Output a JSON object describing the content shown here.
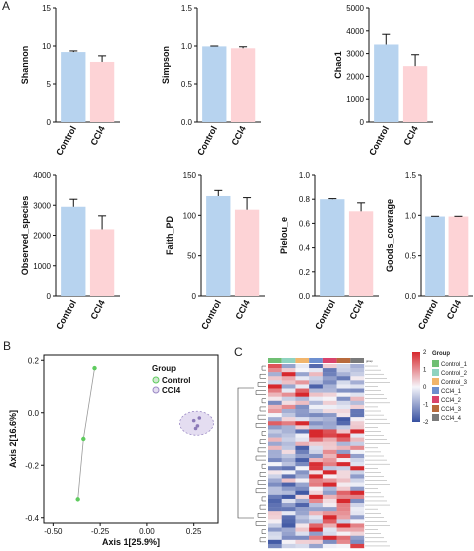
{
  "panel_labels": [
    "A",
    "B",
    "C"
  ],
  "chart_data": [
    {
      "type": "bar",
      "ylabel": "Shannon",
      "categories": [
        "Control",
        "CCl4"
      ],
      "values": [
        9.2,
        7.9
      ],
      "errors": [
        0.15,
        0.8
      ],
      "ylim": [
        0,
        15
      ],
      "yticks": [
        0,
        5,
        10,
        15
      ],
      "colors": [
        "#b7d3ef",
        "#fdd3d6"
      ]
    },
    {
      "type": "bar",
      "ylabel": "Simpson",
      "categories": [
        "Control",
        "CCl4"
      ],
      "values": [
        0.995,
        0.97
      ],
      "errors": [
        0.005,
        0.02
      ],
      "ylim": [
        0,
        1.5
      ],
      "yticks": [
        0.0,
        0.5,
        1.0,
        1.5
      ],
      "colors": [
        "#b7d3ef",
        "#fdd3d6"
      ]
    },
    {
      "type": "bar",
      "ylabel": "Chao1",
      "categories": [
        "Control",
        "CCl4"
      ],
      "values": [
        3400,
        2450
      ],
      "errors": [
        450,
        500
      ],
      "ylim": [
        0,
        5000
      ],
      "yticks": [
        0,
        1000,
        2000,
        3000,
        4000,
        5000
      ],
      "colors": [
        "#b7d3ef",
        "#fdd3d6"
      ]
    },
    {
      "type": "bar",
      "ylabel": "Observed_species",
      "categories": [
        "Control",
        "CCl4"
      ],
      "values": [
        2950,
        2200
      ],
      "errors": [
        250,
        450
      ],
      "ylim": [
        0,
        4000
      ],
      "yticks": [
        0,
        1000,
        2000,
        3000,
        4000
      ],
      "colors": [
        "#b7d3ef",
        "#fdd3d6"
      ]
    },
    {
      "type": "bar",
      "ylabel": "Faith_PD",
      "categories": [
        "Control",
        "CCl4"
      ],
      "values": [
        124,
        107
      ],
      "errors": [
        7,
        15
      ],
      "ylim": [
        0,
        150
      ],
      "yticks": [
        0,
        50,
        100,
        150
      ],
      "colors": [
        "#b7d3ef",
        "#fdd3d6"
      ]
    },
    {
      "type": "bar",
      "ylabel": "Pielou_e",
      "categories": [
        "Control",
        "CCl4"
      ],
      "values": [
        0.8,
        0.7
      ],
      "errors": [
        0.005,
        0.07
      ],
      "ylim": [
        0,
        1.0
      ],
      "yticks": [
        0.0,
        0.2,
        0.4,
        0.6,
        0.8,
        1.0
      ],
      "colors": [
        "#b7d3ef",
        "#fdd3d6"
      ]
    },
    {
      "type": "bar",
      "ylabel": "Goods_coverage",
      "categories": [
        "Control",
        "CCl4"
      ],
      "values": [
        0.985,
        0.985
      ],
      "errors": [
        0.003,
        0.003
      ],
      "ylim": [
        0,
        1.5
      ],
      "yticks": [
        0.0,
        0.5,
        1.0,
        1.5
      ],
      "colors": [
        "#b7d3ef",
        "#fdd3d6"
      ]
    },
    {
      "type": "scatter",
      "xlabel": "Axis 1[25.9%]",
      "ylabel": "Axis 2[16.6%]",
      "xlim": [
        -0.55,
        0.38
      ],
      "ylim": [
        -0.42,
        0.22
      ],
      "xticks": [
        -0.5,
        -0.25,
        0.0,
        0.25
      ],
      "yticks": [
        -0.4,
        -0.2,
        0.0,
        0.2
      ],
      "legend_title": "Group",
      "legend": [
        "Control",
        "CCl4"
      ],
      "series": [
        {
          "name": "Control",
          "color": "#5ecb5e",
          "points": [
            [
              -0.28,
              0.17
            ],
            [
              -0.34,
              -0.1
            ],
            [
              -0.37,
              -0.33
            ]
          ]
        },
        {
          "name": "CCl4",
          "color": "#b9a8d6",
          "points": [
            [
              0.25,
              -0.03
            ],
            [
              0.27,
              -0.05
            ],
            [
              0.28,
              -0.02
            ],
            [
              0.26,
              -0.06
            ]
          ]
        }
      ]
    },
    {
      "type": "heatmap",
      "legend_title": "Group",
      "group_header": "group",
      "columns": [
        "Control_1",
        "Control_2",
        "Control_3",
        "CCl4_1",
        "CCl4_2",
        "CCl4_3",
        "CCl4_4"
      ],
      "column_colors": [
        "#6fbf73",
        "#8fd3c0",
        "#f1b56b",
        "#6d8fcf",
        "#d9436b",
        "#b86a3c",
        "#7a7a7a"
      ],
      "colorbar_ticks": [
        2,
        1,
        0,
        -1,
        -2
      ],
      "rows": 45,
      "nrows_labels": 45
    }
  ]
}
